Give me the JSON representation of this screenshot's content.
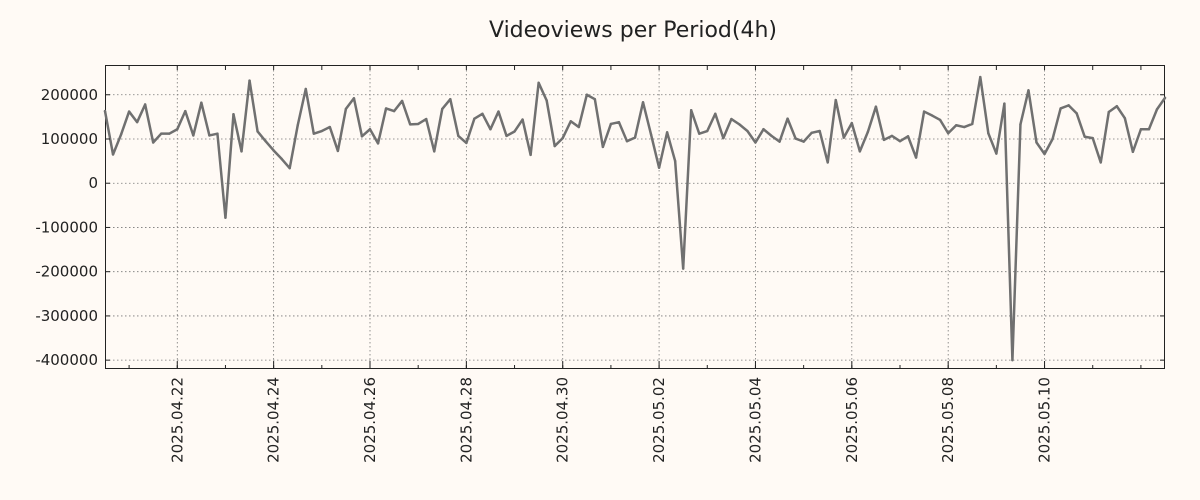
{
  "chart_data": {
    "type": "line",
    "title": "Videoviews per Period(4h)",
    "xlabel": "",
    "ylabel": "",
    "x_start": "2025-04-20 12:00",
    "x_step": "4h",
    "x_tick_labels": [
      "2025.04.22",
      "2025.04.24",
      "2025.04.26",
      "2025.04.28",
      "2025.04.30",
      "2025.05.02",
      "2025.05.04",
      "2025.05.06",
      "2025.05.08",
      "2025.05.10"
    ],
    "y_tick_values": [
      200000,
      100000,
      0,
      -100000,
      -200000,
      -300000,
      -400000
    ],
    "y_tick_labels": [
      "200000",
      "100000",
      "0",
      "-100000",
      "-200000",
      "-300000",
      "-400000"
    ],
    "ylim": [
      -420000,
      265000
    ],
    "grid": true,
    "line_color": "#707070",
    "background_color": "#fffaf5",
    "series": [
      {
        "values": [
          163000,
          65000,
          110000,
          162000,
          138000,
          178000,
          92000,
          112000,
          112000,
          122000,
          163000,
          108000,
          182000,
          108000,
          112000,
          -78000,
          156000,
          72000,
          232000,
          117000,
          95000,
          74000,
          55000,
          34000,
          131000,
          213000,
          112000,
          118000,
          127000,
          73000,
          168000,
          192000,
          106000,
          122000,
          90000,
          169000,
          163000,
          186000,
          133000,
          134000,
          145000,
          72000,
          168000,
          190000,
          107000,
          91000,
          146000,
          157000,
          122000,
          162000,
          107000,
          117000,
          144000,
          64000,
          227000,
          187000,
          84000,
          102000,
          140000,
          127000,
          200000,
          190000,
          82000,
          134000,
          138000,
          95000,
          103000,
          183000,
          110000,
          35000,
          115000,
          50000,
          -193000,
          165000,
          112000,
          118000,
          157000,
          102000,
          145000,
          133000,
          118000,
          92000,
          122000,
          107000,
          94000,
          146000,
          101000,
          94000,
          114000,
          118000,
          47000,
          188000,
          103000,
          136000,
          72000,
          116000,
          173000,
          98000,
          107000,
          95000,
          106000,
          58000,
          162000,
          153000,
          143000,
          113000,
          131000,
          127000,
          134000,
          240000,
          113000,
          67000,
          180000,
          -400000,
          133000,
          210000,
          92000,
          66000,
          100000,
          169000,
          176000,
          158000,
          105000,
          102000,
          47000,
          161000,
          174000,
          147000,
          71000,
          122000,
          122000,
          167000,
          193000
        ]
      }
    ]
  }
}
